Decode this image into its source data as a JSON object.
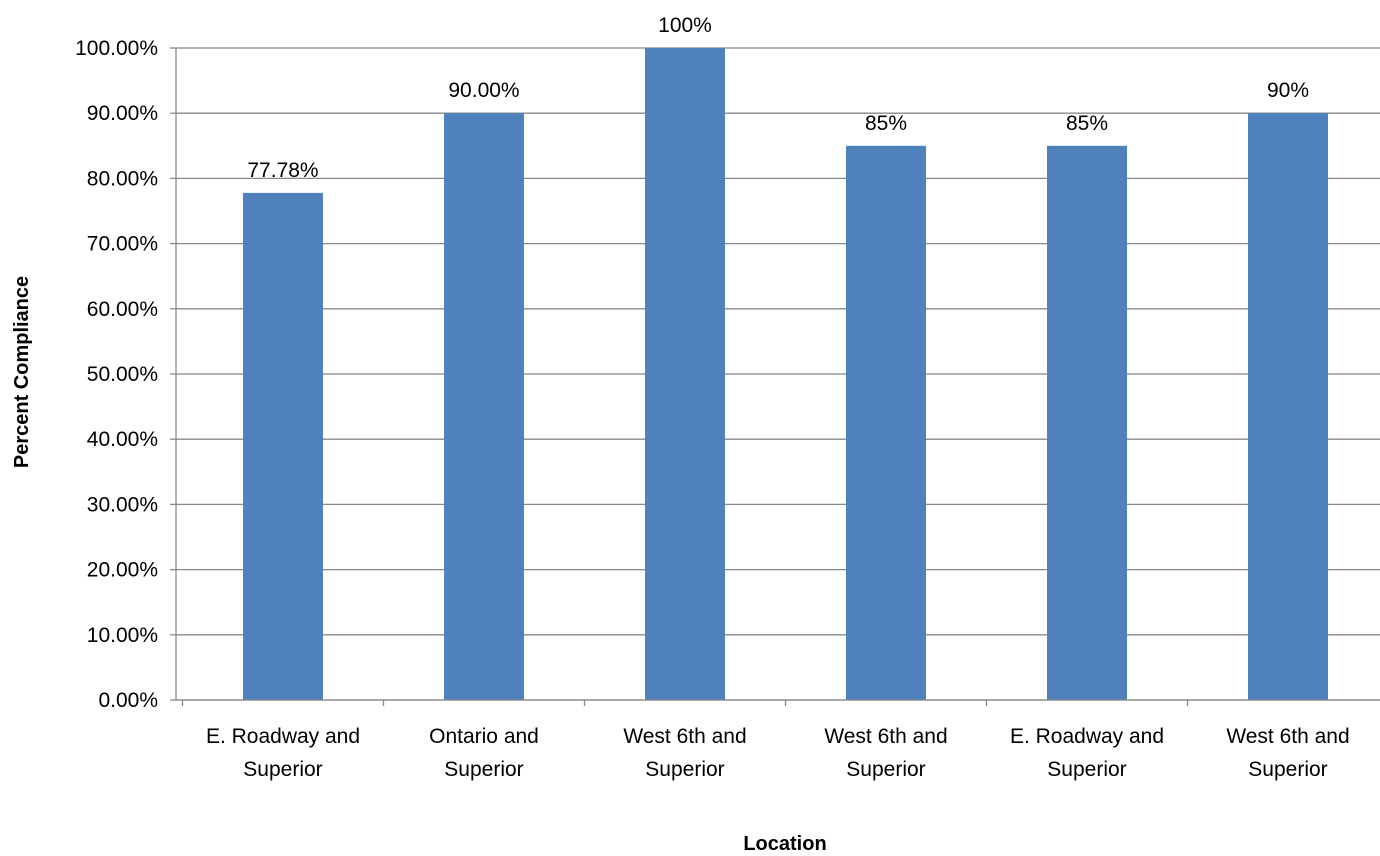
{
  "chart_data": {
    "type": "bar",
    "title": "",
    "xlabel": "Location",
    "ylabel": "Percent Compliance",
    "ylim": [
      0,
      1
    ],
    "y_tick_values": [
      0,
      0.1,
      0.2,
      0.3,
      0.4,
      0.5,
      0.6,
      0.7,
      0.8,
      0.9,
      1.0
    ],
    "y_tick_labels": [
      "0.00%",
      "10.00%",
      "20.00%",
      "30.00%",
      "40.00%",
      "50.00%",
      "60.00%",
      "70.00%",
      "80.00%",
      "90.00%",
      "100.00%"
    ],
    "categories": [
      [
        "E. Roadway and",
        "Superior"
      ],
      [
        "Ontario and",
        "Superior"
      ],
      [
        "West 6th and",
        "Superior"
      ],
      [
        "West 6th and",
        "Superior"
      ],
      [
        "E. Roadway and",
        "Superior"
      ],
      [
        "West 6th and",
        "Superior"
      ]
    ],
    "values": [
      0.7778,
      0.9,
      1.0,
      0.85,
      0.85,
      0.9
    ],
    "data_labels": [
      "77.78%",
      "90.00%",
      "100%",
      "85%",
      "85%",
      "90%"
    ],
    "grid": true,
    "legend": "none",
    "colors": {
      "bar": "#4F81BD",
      "grid": "#888888",
      "axis": "#888888"
    }
  }
}
